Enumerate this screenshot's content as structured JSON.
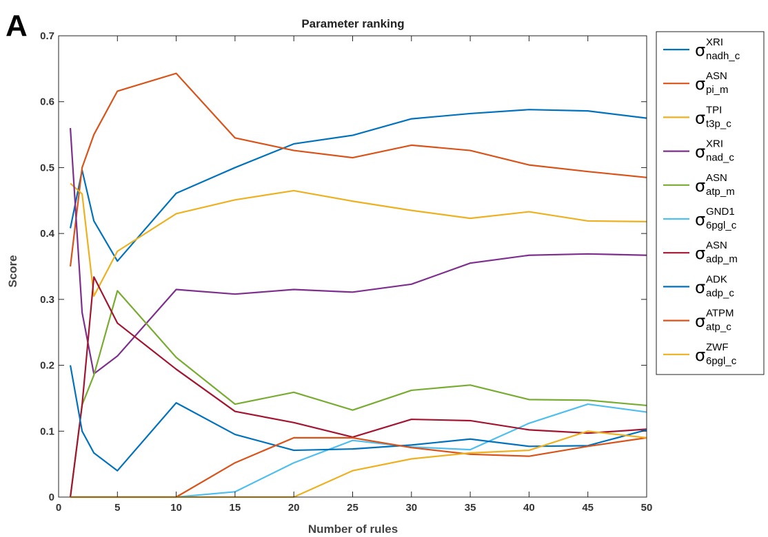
{
  "panel_label": "A",
  "chart_data": {
    "type": "line",
    "title": "Parameter ranking",
    "xlabel": "Number of rules",
    "ylabel": "Score",
    "xlim": [
      0,
      50
    ],
    "ylim": [
      0,
      0.7
    ],
    "xticks": [
      0,
      5,
      10,
      15,
      20,
      25,
      30,
      35,
      40,
      45,
      50
    ],
    "yticks": [
      0,
      0.1,
      0.2,
      0.3,
      0.4,
      0.5,
      0.6,
      0.7
    ],
    "xtick_labels": [
      "0",
      "5",
      "10",
      "15",
      "20",
      "25",
      "30",
      "35",
      "40",
      "45",
      "50"
    ],
    "ytick_labels": [
      "0",
      "0.1",
      "0.2",
      "0.3",
      "0.4",
      "0.5",
      "0.6",
      "0.7"
    ],
    "grid": false,
    "legend_position": "outside-right",
    "x": [
      1,
      2,
      3,
      5,
      10,
      15,
      20,
      25,
      30,
      35,
      40,
      45,
      50
    ],
    "series": [
      {
        "symbol": "σ",
        "sup": "XRI",
        "sub": "nadh_c",
        "color": "#0072BD",
        "values": [
          0.408,
          0.496,
          0.419,
          0.358,
          0.461,
          0.5,
          0.536,
          0.549,
          0.574,
          0.582,
          0.588,
          0.586,
          0.575
        ]
      },
      {
        "symbol": "σ",
        "sup": "ASN",
        "sub": "pi_m",
        "color": "#D95319",
        "values": [
          0.35,
          0.5,
          0.55,
          0.616,
          0.643,
          0.545,
          0.526,
          0.515,
          0.534,
          0.526,
          0.504,
          0.494,
          0.485
        ]
      },
      {
        "symbol": "σ",
        "sup": "TPI",
        "sub": "t3p_c",
        "color": "#EDB120",
        "values": [
          0.476,
          0.46,
          0.305,
          0.373,
          0.43,
          0.451,
          0.465,
          0.449,
          0.435,
          0.423,
          0.433,
          0.419,
          0.418
        ]
      },
      {
        "symbol": "σ",
        "sup": "XRI",
        "sub": "nad_c",
        "color": "#7E2F8E",
        "values": [
          0.56,
          0.28,
          0.187,
          0.214,
          0.315,
          0.308,
          0.315,
          0.311,
          0.323,
          0.355,
          0.367,
          0.369,
          0.367
        ]
      },
      {
        "symbol": "σ",
        "sup": "ASN",
        "sub": "atp_m",
        "color": "#77AC30",
        "values": [
          0.0,
          0.14,
          0.185,
          0.313,
          0.212,
          0.141,
          0.159,
          0.132,
          0.162,
          0.17,
          0.148,
          0.147,
          0.139
        ]
      },
      {
        "symbol": "σ",
        "sup": "GND1",
        "sub": "6pgl_c",
        "color": "#4DBEEE",
        "values": [
          0.0,
          0.0,
          0.0,
          0.0,
          0.0,
          0.008,
          0.052,
          0.086,
          0.076,
          0.072,
          0.112,
          0.141,
          0.129
        ]
      },
      {
        "symbol": "σ",
        "sup": "ASN",
        "sub": "adp_m",
        "color": "#A2142F",
        "values": [
          0.0,
          0.14,
          0.334,
          0.264,
          0.194,
          0.13,
          0.113,
          0.091,
          0.118,
          0.116,
          0.102,
          0.097,
          0.103
        ]
      },
      {
        "symbol": "σ",
        "sup": "ADK",
        "sub": "adp_c",
        "color": "#0072BD",
        "values": [
          0.2,
          0.1,
          0.067,
          0.04,
          0.143,
          0.095,
          0.071,
          0.073,
          0.079,
          0.088,
          0.077,
          0.078,
          0.102
        ]
      },
      {
        "symbol": "σ",
        "sup": "ATPM",
        "sub": "atp_c",
        "color": "#D95319",
        "values": [
          0.0,
          0.0,
          0.0,
          0.0,
          0.0,
          0.052,
          0.09,
          0.09,
          0.075,
          0.065,
          0.062,
          0.077,
          0.09
        ]
      },
      {
        "symbol": "σ",
        "sup": "ZWF",
        "sub": "6pgl_c",
        "color": "#EDB120",
        "values": [
          0.0,
          0.0,
          0.0,
          0.0,
          0.0,
          0.0,
          0.0,
          0.04,
          0.058,
          0.067,
          0.071,
          0.1,
          0.09
        ]
      }
    ]
  }
}
